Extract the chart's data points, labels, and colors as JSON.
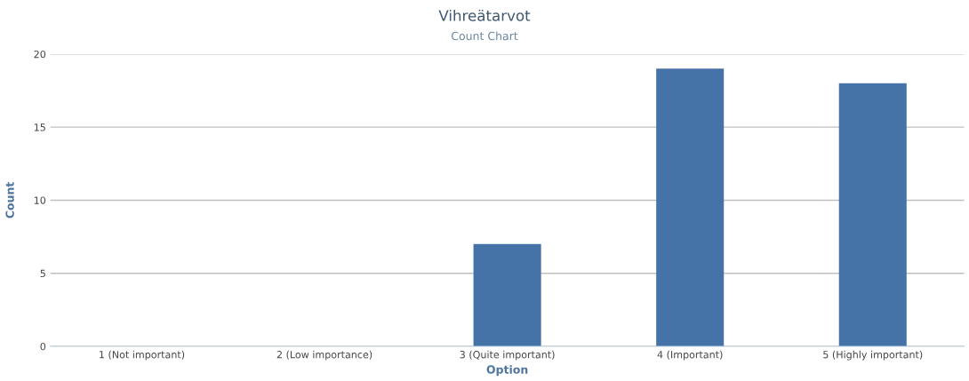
{
  "chart_data": {
    "type": "bar",
    "title": "Vihreätarvot",
    "subtitle": "Count Chart",
    "xlabel": "Option",
    "ylabel": "Count",
    "categories": [
      "1 (Not important)",
      "2 (Low importance)",
      "3 (Quite important)",
      "4 (Important)",
      "5 (Highly important)"
    ],
    "values": [
      0,
      0,
      7,
      19,
      18
    ],
    "color": "#4572a7",
    "ylim": [
      0,
      20
    ],
    "yticks": [
      0,
      5,
      10,
      15,
      20
    ],
    "grid": "y",
    "legend": false
  }
}
